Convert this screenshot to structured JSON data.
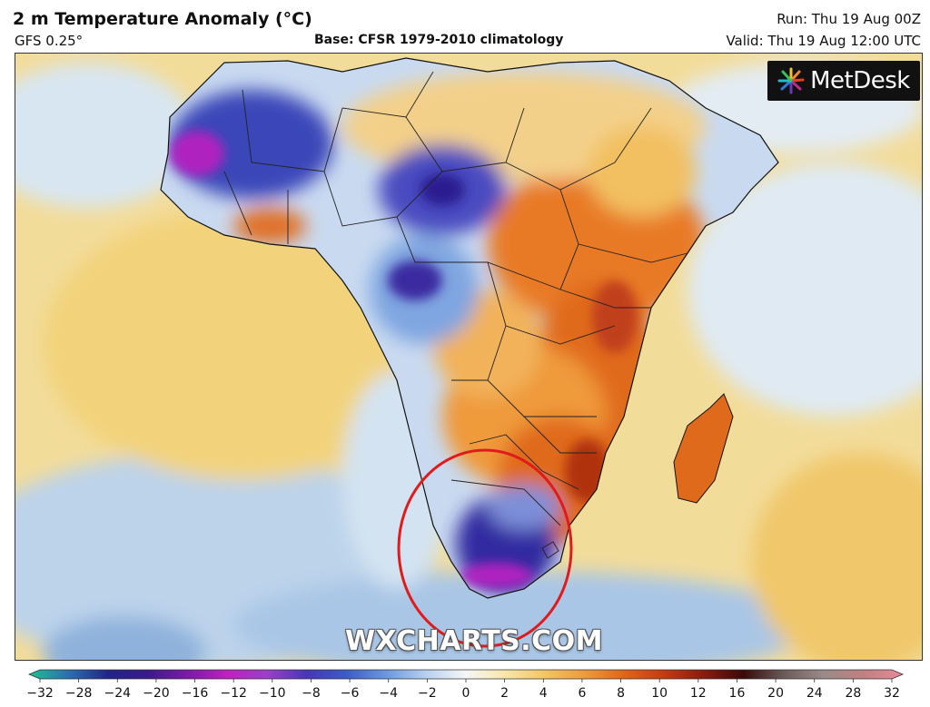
{
  "header": {
    "title": "2 m Temperature Anomaly (°C)",
    "model": "GFS 0.25°",
    "base": "Base: CFSR 1979-2010 climatology",
    "run": "Run: Thu 19 Aug 00Z",
    "valid": "Valid: Thu 19 Aug 12:00 UTC"
  },
  "logo": {
    "text": "MetDesk",
    "icon": "sunburst-icon"
  },
  "watermark": "WXCHARTS.COM",
  "highlight": {
    "shape": "red-circle",
    "color": "#e01b1b",
    "region": "southern-africa"
  },
  "colorbar": {
    "ticks": [
      "−32",
      "−28",
      "−24",
      "−20",
      "−16",
      "−12",
      "−10",
      "−8",
      "−6",
      "−4",
      "−2",
      "0",
      "2",
      "4",
      "6",
      "8",
      "10",
      "12",
      "16",
      "20",
      "24",
      "28",
      "32"
    ],
    "colors": [
      "#1fbf8f",
      "#2a6fb0",
      "#22238a",
      "#3b1a8c",
      "#7c1aa8",
      "#c020c0",
      "#9a40c8",
      "#4636b8",
      "#3c5cc8",
      "#6b98e0",
      "#b8d0f0",
      "#f6f6f6",
      "#f7e6a8",
      "#f3c562",
      "#ee9a3a",
      "#e06418",
      "#c43a10",
      "#8a1a10",
      "#3a0a0a",
      "#6a5a5a",
      "#9a8a8a",
      "#c08080",
      "#e88a9a"
    ]
  }
}
